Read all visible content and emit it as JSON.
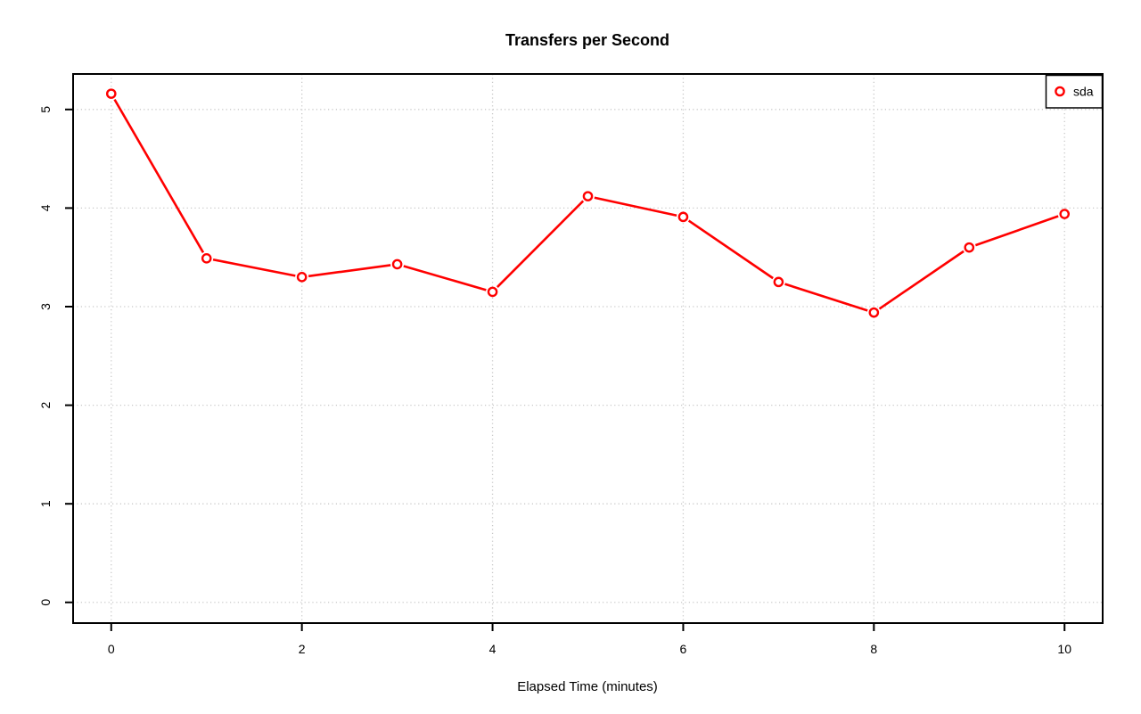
{
  "chart_data": {
    "type": "line",
    "title": "Transfers per Second",
    "xlabel": "Elapsed Time (minutes)",
    "ylabel": "",
    "series": [
      {
        "name": "sda",
        "color": "#FF0000",
        "marker": "open-circle",
        "line_style": "solid",
        "x": [
          0,
          1,
          2,
          3,
          4,
          5,
          6,
          7,
          8,
          9,
          10
        ],
        "y": [
          5.16,
          3.49,
          3.3,
          3.43,
          3.15,
          4.12,
          3.91,
          3.25,
          2.94,
          3.6,
          3.94
        ]
      }
    ],
    "x_ticks": [
      0,
      2,
      4,
      6,
      8,
      10
    ],
    "x_tick_labels": [
      "0",
      "2",
      "4",
      "6",
      "8",
      "10"
    ],
    "y_ticks": [
      0,
      1,
      2,
      3,
      4,
      5
    ],
    "y_tick_labels": [
      "0",
      "1",
      "2",
      "3",
      "4",
      "5"
    ],
    "xlim": [
      -0.4,
      10.4
    ],
    "ylim": [
      -0.21,
      5.36
    ],
    "grid": true,
    "gridline_style": "dotted",
    "gridline_color": "#C8C8C8",
    "axis_color": "#000000",
    "background_color": "#FFFFFF",
    "legend": {
      "position": "top-right",
      "entries": [
        {
          "label": "sda",
          "color": "#FF0000",
          "marker": "open-circle"
        }
      ]
    }
  }
}
